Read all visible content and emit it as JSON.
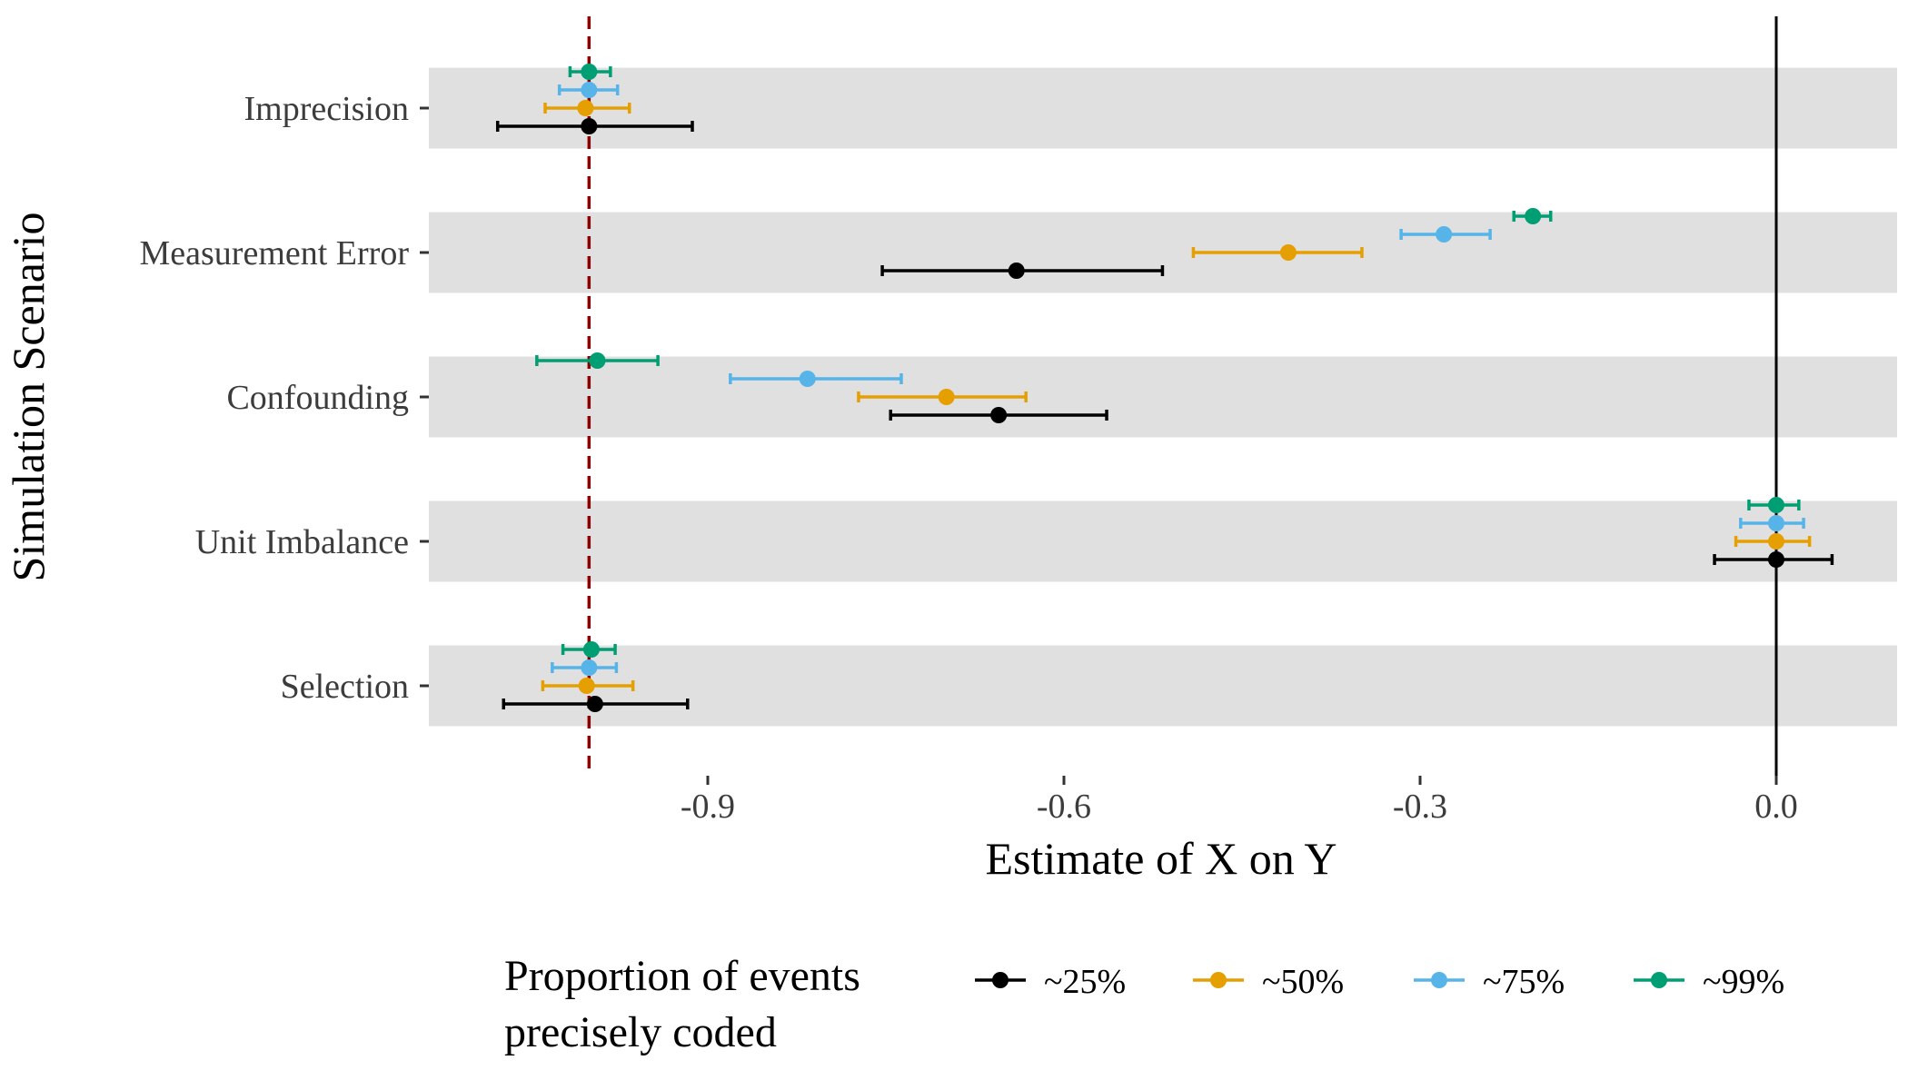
{
  "chart_data": {
    "type": "scatter",
    "subtype": "dot-and-whisker",
    "xlabel": "Estimate of X on Y",
    "ylabel": "Simulation Scenario",
    "xlim": [
      -1.13,
      0.1
    ],
    "xticks": [
      -0.9,
      -0.6,
      -0.3,
      0.0
    ],
    "xtick_labels": [
      "-0.9",
      "-0.6",
      "-0.3",
      "0.0"
    ],
    "categories": [
      "Imprecision",
      "Measurement Error",
      "Confounding",
      "Unit Imbalance",
      "Selection"
    ],
    "reference_lines": [
      {
        "x": -1.0,
        "style": "dashed",
        "color": "#8B0000"
      },
      {
        "x": 0.0,
        "style": "solid",
        "color": "#000000"
      }
    ],
    "legend": {
      "title": [
        "Proportion of events",
        "precisely coded"
      ],
      "placement": "bottom"
    },
    "series": [
      {
        "name": "~25%",
        "color": "#000000",
        "estimates": [
          -1.0,
          -0.64,
          -0.655,
          0.0,
          -0.995
        ],
        "lower": [
          -1.077,
          -0.753,
          -0.746,
          -0.052,
          -1.072
        ],
        "upper": [
          -0.913,
          -0.517,
          -0.564,
          0.047,
          -0.917
        ]
      },
      {
        "name": "~50%",
        "color": "#E69F00",
        "estimates": [
          -1.003,
          -0.411,
          -0.699,
          0.0,
          -1.002
        ],
        "lower": [
          -1.037,
          -0.491,
          -0.773,
          -0.034,
          -1.039
        ],
        "upper": [
          -0.966,
          -0.349,
          -0.632,
          0.028,
          -0.963
        ]
      },
      {
        "name": "~75%",
        "color": "#56B4E9",
        "estimates": [
          -1.0,
          -0.28,
          -0.816,
          0.0,
          -1.0
        ],
        "lower": [
          -1.025,
          -0.316,
          -0.881,
          -0.03,
          -1.031
        ],
        "upper": [
          -0.976,
          -0.241,
          -0.737,
          0.023,
          -0.977
        ]
      },
      {
        "name": "~99%",
        "color": "#009E73",
        "estimates": [
          -1.0,
          -0.205,
          -0.993,
          0.0,
          -0.998
        ],
        "lower": [
          -1.016,
          -0.221,
          -1.044,
          -0.023,
          -1.022
        ],
        "upper": [
          -0.982,
          -0.19,
          -0.942,
          0.019,
          -0.978
        ]
      }
    ]
  }
}
